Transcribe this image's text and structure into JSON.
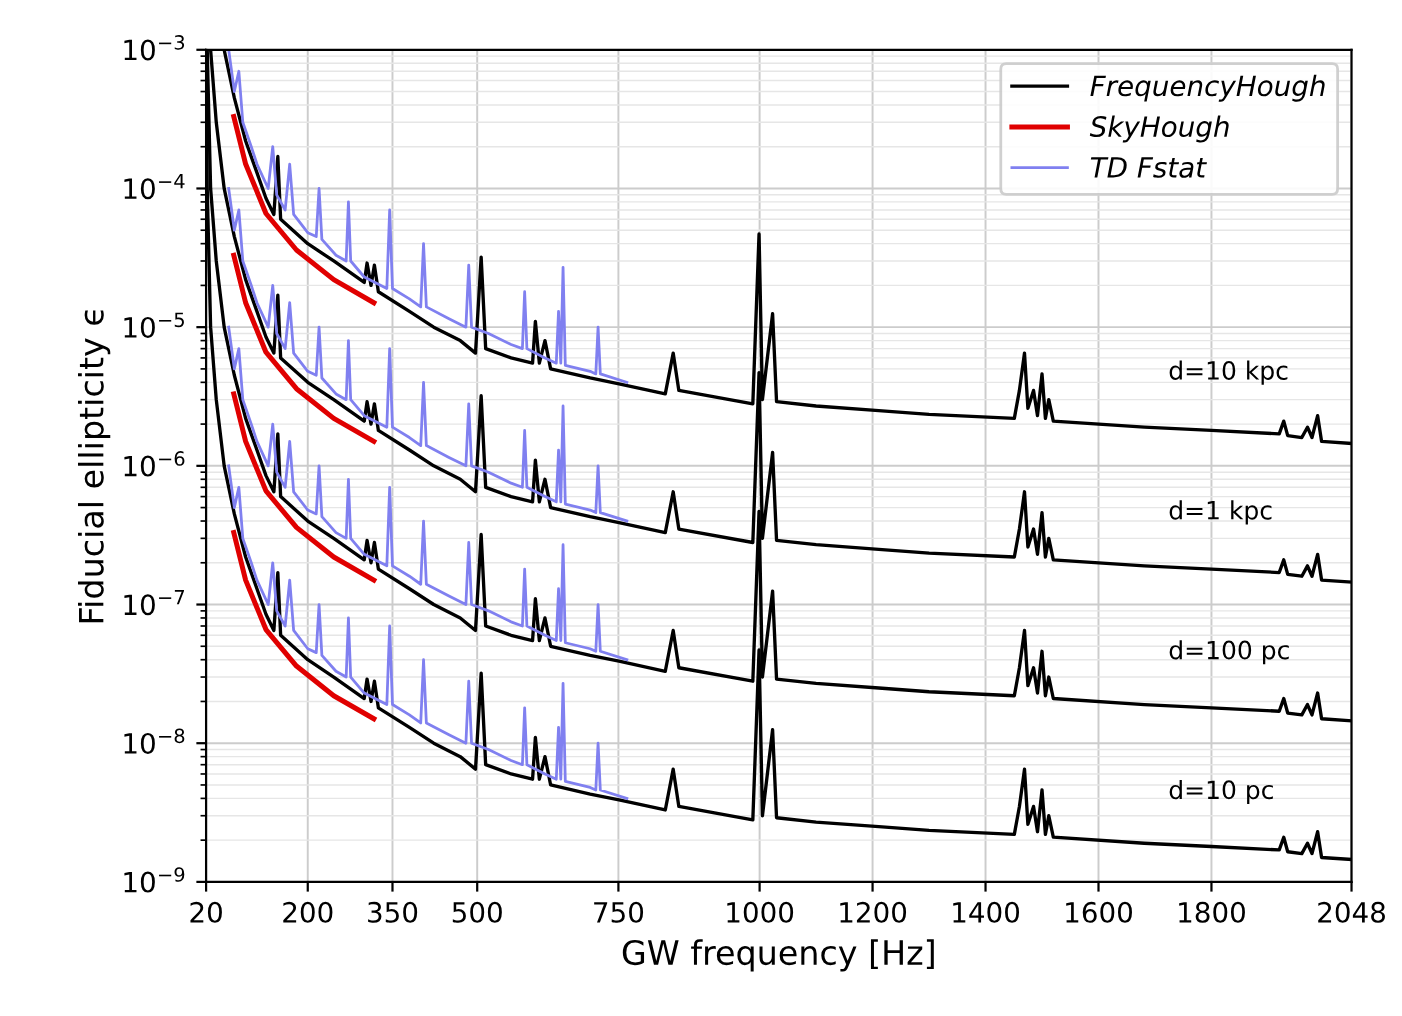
{
  "chart_data": {
    "type": "line",
    "xlabel": "GW frequency [Hz]",
    "ylabel": "Fiducial ellipticity ϵ",
    "log": "y",
    "grid": true,
    "legend": "top right",
    "line_style": "solid",
    "marker": "none",
    "xlim": [
      20,
      2048
    ],
    "xticks": [
      20,
      200,
      350,
      500,
      750,
      1000,
      1200,
      1400,
      1600,
      1800,
      2048
    ],
    "ylim": [
      1e-09,
      0.001
    ],
    "yticks": [
      {
        "value": 1e-09,
        "label": "10$^{−9}$"
      },
      {
        "value": 1e-08,
        "label": "10$^{−8}$"
      },
      {
        "value": 1e-07,
        "label": "10$^{−7}$"
      },
      {
        "value": 1e-06,
        "label": "10$^{−6}$"
      },
      {
        "value": 1e-05,
        "label": "10$^{−5}$"
      },
      {
        "value": 0.0001,
        "label": "10$^{−4}$"
      },
      {
        "value": 0.001,
        "label": "10$^{−3}$"
      }
    ],
    "annotations": [
      "d=10 kpc",
      "d=1 kpc",
      "d=100 pc",
      "d=10 pc"
    ],
    "series": [
      {
        "name": "FrequencyHough",
        "color": "#000000",
        "x": [
          52,
          70,
          90,
          110,
          126,
          140,
          147,
          152,
          200,
          246,
          300,
          305,
          312,
          318,
          325,
          380,
          423,
          470,
          497,
          507,
          515,
          560,
          598,
          603,
          610,
          620,
          630,
          700,
          751,
          833,
          847,
          857,
          988,
          999,
          1005,
          1023,
          1030,
          1100,
          1211,
          1300,
          1451,
          1460,
          1469,
          1475,
          1485,
          1492,
          1500,
          1506,
          1512,
          1520,
          1681,
          1800,
          1920,
          1928,
          1935,
          1960,
          1970,
          1978,
          1988,
          1995,
          2048
        ],
        "values": [
          0.001,
          0.00045,
          0.00022,
          0.00013,
          8.5e-05,
          6.5e-05,
          0.00017,
          6e-05,
          4e-05,
          3e-05,
          2.1e-05,
          2.9e-05,
          2e-05,
          2.8e-05,
          1.8e-05,
          1.3e-05,
          1e-05,
          8e-06,
          6.5e-06,
          3.2e-05,
          7e-06,
          6e-06,
          5.5e-06,
          1.1e-05,
          5.5e-06,
          8e-06,
          5e-06,
          4.3e-06,
          3.9e-06,
          3.3e-06,
          6.5e-06,
          3.5e-06,
          2.8e-06,
          4.7e-05,
          3e-06,
          1.25e-05,
          2.9e-06,
          2.7e-06,
          2.5e-06,
          2.35e-06,
          2.2e-06,
          3.5e-06,
          6.5e-06,
          2.6e-06,
          3.5e-06,
          2.3e-06,
          4.6e-06,
          2.2e-06,
          3e-06,
          2.1e-06,
          1.9e-06,
          1.8e-06,
          1.7e-06,
          2.1e-06,
          1.65e-06,
          1.6e-06,
          1.9e-06,
          1.6e-06,
          2.3e-06,
          1.5e-06,
          1.45e-06
        ]
      },
      {
        "name": "SkyHough",
        "color": "#e00000",
        "x": [
          69,
          90,
          126,
          180,
          246,
          317
        ],
        "values": [
          0.00033,
          0.00015,
          6.6e-05,
          3.6e-05,
          2.2e-05,
          1.5e-05
        ]
      },
      {
        "name": "TD Fstat",
        "color": "#8080f0",
        "x": [
          60,
          70,
          78,
          85,
          100,
          110,
          130,
          138,
          145,
          160,
          168,
          175,
          200,
          215,
          220,
          225,
          250,
          268,
          272,
          276,
          300,
          340,
          345,
          350,
          380,
          400,
          405,
          410,
          450,
          480,
          485,
          490,
          520,
          560,
          580,
          584,
          588,
          620,
          640,
          644,
          648,
          652,
          656,
          700,
          710,
          714,
          718,
          765
        ],
        "values": [
          0.001,
          0.0005,
          0.0007,
          0.0003,
          0.0002,
          0.00015,
          0.0001,
          0.0002,
          9e-05,
          7e-05,
          0.00015,
          6.5e-05,
          4.8e-05,
          4.5e-05,
          0.0001,
          4.3e-05,
          3.3e-05,
          3e-05,
          8e-05,
          3e-05,
          2.3e-05,
          1.9e-05,
          7e-05,
          1.9e-05,
          1.6e-05,
          1.4e-05,
          4e-05,
          1.4e-05,
          1.15e-05,
          1e-05,
          2.8e-05,
          1e-05,
          9e-06,
          7.5e-06,
          7e-06,
          1.8e-05,
          7e-06,
          6e-06,
          5.5e-06,
          1.3e-05,
          5.5e-06,
          2.7e-05,
          5.3e-06,
          4.8e-06,
          4.6e-06,
          1e-05,
          4.6e-06,
          4e-06
        ]
      },
      {
        "color": "#000000",
        "x": [
          28,
          38,
          52,
          70,
          90,
          110,
          126,
          140,
          147,
          152,
          200,
          246,
          300,
          305,
          312,
          318,
          325,
          380,
          423,
          470,
          497,
          507,
          515,
          560,
          598,
          603,
          610,
          620,
          630,
          700,
          751,
          833,
          847,
          857,
          988,
          999,
          1005,
          1023,
          1030,
          1100,
          1211,
          1300,
          1451,
          1460,
          1469,
          1475,
          1485,
          1492,
          1500,
          1506,
          1512,
          1520,
          1681,
          1800,
          1920,
          1928,
          1935,
          1960,
          1970,
          1978,
          1988,
          1995,
          2048
        ],
        "values": [
          0.001,
          0.0003,
          0.0001,
          4.5e-05,
          2.2e-05,
          1.3e-05,
          8.5e-06,
          6.5e-06,
          1.7e-05,
          6e-06,
          4e-06,
          3e-06,
          2.1e-06,
          2.9e-06,
          2e-06,
          2.8e-06,
          1.8e-06,
          1.3e-06,
          1e-06,
          8e-07,
          6.5e-07,
          3.2e-06,
          7e-07,
          6e-07,
          5.5e-07,
          1.1e-06,
          5.5e-07,
          8e-07,
          5e-07,
          4.3e-07,
          3.9e-07,
          3.3e-07,
          6.5e-07,
          3.5e-07,
          2.8e-07,
          4.7e-06,
          3e-07,
          1.25e-06,
          2.9e-07,
          2.7e-07,
          2.5e-07,
          2.35e-07,
          2.2e-07,
          3.5e-07,
          6.5e-07,
          2.6e-07,
          3.5e-07,
          2.3e-07,
          4.6e-07,
          2.2e-07,
          3e-07,
          2.1e-07,
          1.9e-07,
          1.8e-07,
          1.7e-07,
          2.1e-07,
          1.65e-07,
          1.6e-07,
          1.9e-07,
          1.6e-07,
          2.3e-07,
          1.5e-07,
          1.45e-07
        ]
      },
      {
        "color": "#e00000",
        "x": [
          69,
          90,
          126,
          180,
          246,
          317
        ],
        "values": [
          3.3e-05,
          1.5e-05,
          6.6e-06,
          3.6e-06,
          2.2e-06,
          1.5e-06
        ]
      },
      {
        "color": "#8080f0",
        "x": [
          60,
          70,
          78,
          85,
          100,
          110,
          130,
          138,
          145,
          160,
          168,
          175,
          200,
          215,
          220,
          225,
          250,
          268,
          272,
          276,
          300,
          340,
          345,
          350,
          380,
          400,
          405,
          410,
          450,
          480,
          485,
          490,
          520,
          560,
          580,
          584,
          588,
          620,
          640,
          644,
          648,
          652,
          656,
          700,
          710,
          714,
          718,
          765
        ],
        "values": [
          0.0001,
          5e-05,
          7e-05,
          3e-05,
          2e-05,
          1.5e-05,
          1e-05,
          2e-05,
          9e-06,
          7e-06,
          1.5e-05,
          6.5e-06,
          4.8e-06,
          4.5e-06,
          1e-05,
          4.3e-06,
          3.3e-06,
          3e-06,
          8e-06,
          3e-06,
          2.3e-06,
          1.9e-06,
          7e-06,
          1.9e-06,
          1.6e-06,
          1.4e-06,
          4e-06,
          1.4e-06,
          1.15e-06,
          1e-06,
          2.8e-06,
          1e-06,
          9e-07,
          7.5e-07,
          7e-07,
          1.8e-06,
          7e-07,
          6e-07,
          5.5e-07,
          1.3e-06,
          5.5e-07,
          2.7e-06,
          5.3e-07,
          4.8e-07,
          4.6e-07,
          1e-06,
          4.6e-07,
          4e-07
        ]
      },
      {
        "color": "#000000",
        "x": [
          22,
          28,
          38,
          52,
          70,
          90,
          110,
          126,
          140,
          147,
          152,
          200,
          246,
          300,
          305,
          312,
          318,
          325,
          380,
          423,
          470,
          497,
          507,
          515,
          560,
          598,
          603,
          610,
          620,
          630,
          700,
          751,
          833,
          847,
          857,
          988,
          999,
          1005,
          1023,
          1030,
          1100,
          1211,
          1300,
          1451,
          1460,
          1469,
          1475,
          1485,
          1492,
          1500,
          1506,
          1512,
          1520,
          1681,
          1800,
          1920,
          1928,
          1935,
          1960,
          1970,
          1978,
          1988,
          1995,
          2048
        ],
        "values": [
          0.001,
          0.0001,
          3e-05,
          1e-05,
          4.5e-06,
          2.2e-06,
          1.3e-06,
          8.5e-07,
          6.5e-07,
          1.7e-06,
          6e-07,
          4e-07,
          3e-07,
          2.1e-07,
          2.9e-07,
          2e-07,
          2.8e-07,
          1.8e-07,
          1.3e-07,
          1e-07,
          8e-08,
          6.5e-08,
          3.2e-07,
          7e-08,
          6e-08,
          5.5e-08,
          1.1e-07,
          5.5e-08,
          8e-08,
          5e-08,
          4.3e-08,
          3.9e-08,
          3.3e-08,
          6.5e-08,
          3.5e-08,
          2.8e-08,
          4.7e-07,
          3e-08,
          1.25e-07,
          2.9e-08,
          2.7e-08,
          2.5e-08,
          2.35e-08,
          2.2e-08,
          3.5e-08,
          6.5e-08,
          2.6e-08,
          3.5e-08,
          2.3e-08,
          4.6e-08,
          2.2e-08,
          3e-08,
          2.1e-08,
          1.9e-08,
          1.8e-08,
          1.7e-08,
          2.1e-08,
          1.65e-08,
          1.6e-08,
          1.9e-08,
          1.6e-08,
          2.3e-08,
          1.5e-08,
          1.45e-08
        ]
      },
      {
        "color": "#e00000",
        "x": [
          69,
          90,
          126,
          180,
          246,
          317
        ],
        "values": [
          3.3e-06,
          1.5e-06,
          6.6e-07,
          3.6e-07,
          2.2e-07,
          1.5e-07
        ]
      },
      {
        "color": "#8080f0",
        "x": [
          60,
          70,
          78,
          85,
          100,
          110,
          130,
          138,
          145,
          160,
          168,
          175,
          200,
          215,
          220,
          225,
          250,
          268,
          272,
          276,
          300,
          340,
          345,
          350,
          380,
          400,
          405,
          410,
          450,
          480,
          485,
          490,
          520,
          560,
          580,
          584,
          588,
          620,
          640,
          644,
          648,
          652,
          656,
          700,
          710,
          714,
          718,
          765
        ],
        "values": [
          1e-05,
          5e-06,
          7e-06,
          3e-06,
          2e-06,
          1.5e-06,
          1e-06,
          2e-06,
          9e-07,
          7e-07,
          1.5e-06,
          6.5e-07,
          4.8e-07,
          4.5e-07,
          1e-06,
          4.3e-07,
          3.3e-07,
          3e-07,
          8e-07,
          3e-07,
          2.3e-07,
          1.9e-07,
          7e-07,
          1.9e-07,
          1.6e-07,
          1.4e-07,
          4e-07,
          1.4e-07,
          1.15e-07,
          1e-07,
          2.8e-07,
          1e-07,
          9e-08,
          7.5e-08,
          7e-08,
          1.8e-07,
          7e-08,
          6e-08,
          5.5e-08,
          1.3e-07,
          5.5e-08,
          2.7e-07,
          5.3e-08,
          4.8e-08,
          4.6e-08,
          1e-07,
          4.6e-08,
          4e-08
        ]
      },
      {
        "color": "#000000",
        "x": [
          20,
          22,
          28,
          38,
          52,
          70,
          90,
          110,
          126,
          140,
          147,
          152,
          200,
          246,
          300,
          305,
          312,
          318,
          325,
          380,
          423,
          470,
          497,
          507,
          515,
          560,
          598,
          603,
          610,
          620,
          630,
          700,
          751,
          833,
          847,
          857,
          988,
          999,
          1005,
          1023,
          1030,
          1100,
          1211,
          1300,
          1451,
          1460,
          1469,
          1475,
          1485,
          1492,
          1500,
          1506,
          1512,
          1520,
          1681,
          1800,
          1920,
          1928,
          1935,
          1960,
          1970,
          1978,
          1988,
          1995,
          2048
        ],
        "values": [
          0.001,
          0.0001,
          1e-05,
          3e-06,
          1e-06,
          4.5e-07,
          2.2e-07,
          1.3e-07,
          8.5e-08,
          6.5e-08,
          1.7e-07,
          6e-08,
          4e-08,
          3e-08,
          2.1e-08,
          2.9e-08,
          2e-08,
          2.8e-08,
          1.8e-08,
          1.3e-08,
          1e-08,
          8e-09,
          6.5e-09,
          3.2e-08,
          7e-09,
          6e-09,
          5.5e-09,
          1.1e-08,
          5.5e-09,
          8e-09,
          5e-09,
          4.3e-09,
          3.9e-09,
          3.3e-09,
          6.5e-09,
          3.5e-09,
          2.8e-09,
          4.7e-08,
          3e-09,
          1.25e-08,
          2.9e-09,
          2.7e-09,
          2.5e-09,
          2.35e-09,
          2.2e-09,
          3.5e-09,
          6.5e-09,
          2.6e-09,
          3.5e-09,
          2.3e-09,
          4.6e-09,
          2.2e-09,
          3e-09,
          2.1e-09,
          1.9e-09,
          1.8e-09,
          1.7e-09,
          2.1e-09,
          1.65e-09,
          1.6e-09,
          1.9e-09,
          1.6e-09,
          2.3e-09,
          1.5e-09,
          1.45e-09
        ]
      },
      {
        "color": "#e00000",
        "x": [
          69,
          90,
          126,
          180,
          246,
          317
        ],
        "values": [
          3.3e-07,
          1.5e-07,
          6.6e-08,
          3.6e-08,
          2.2e-08,
          1.5e-08
        ]
      },
      {
        "color": "#8080f0",
        "x": [
          60,
          70,
          78,
          85,
          100,
          110,
          130,
          138,
          145,
          160,
          168,
          175,
          200,
          215,
          220,
          225,
          250,
          268,
          272,
          276,
          300,
          340,
          345,
          350,
          380,
          400,
          405,
          410,
          450,
          480,
          485,
          490,
          520,
          560,
          580,
          584,
          588,
          620,
          640,
          644,
          648,
          652,
          656,
          700,
          710,
          714,
          718,
          765
        ],
        "values": [
          1e-06,
          5e-07,
          7e-07,
          3e-07,
          2e-07,
          1.5e-07,
          1e-07,
          2e-07,
          9e-08,
          7e-08,
          1.5e-07,
          6.5e-08,
          4.8e-08,
          4.5e-08,
          1e-07,
          4.3e-08,
          3.3e-08,
          3e-08,
          8e-08,
          3e-08,
          2.3e-08,
          1.9e-08,
          7e-08,
          1.9e-08,
          1.6e-08,
          1.4e-08,
          4e-08,
          1.4e-08,
          1.15e-08,
          1e-08,
          2.8e-08,
          1e-08,
          9e-09,
          7.5e-09,
          7e-09,
          1.8e-08,
          7e-09,
          6e-09,
          5.5e-09,
          1.3e-08,
          5.5e-09,
          2.7e-08,
          5.3e-09,
          4.8e-09,
          4.6e-09,
          1e-08,
          4.6e-09,
          4e-09
        ]
      }
    ]
  }
}
